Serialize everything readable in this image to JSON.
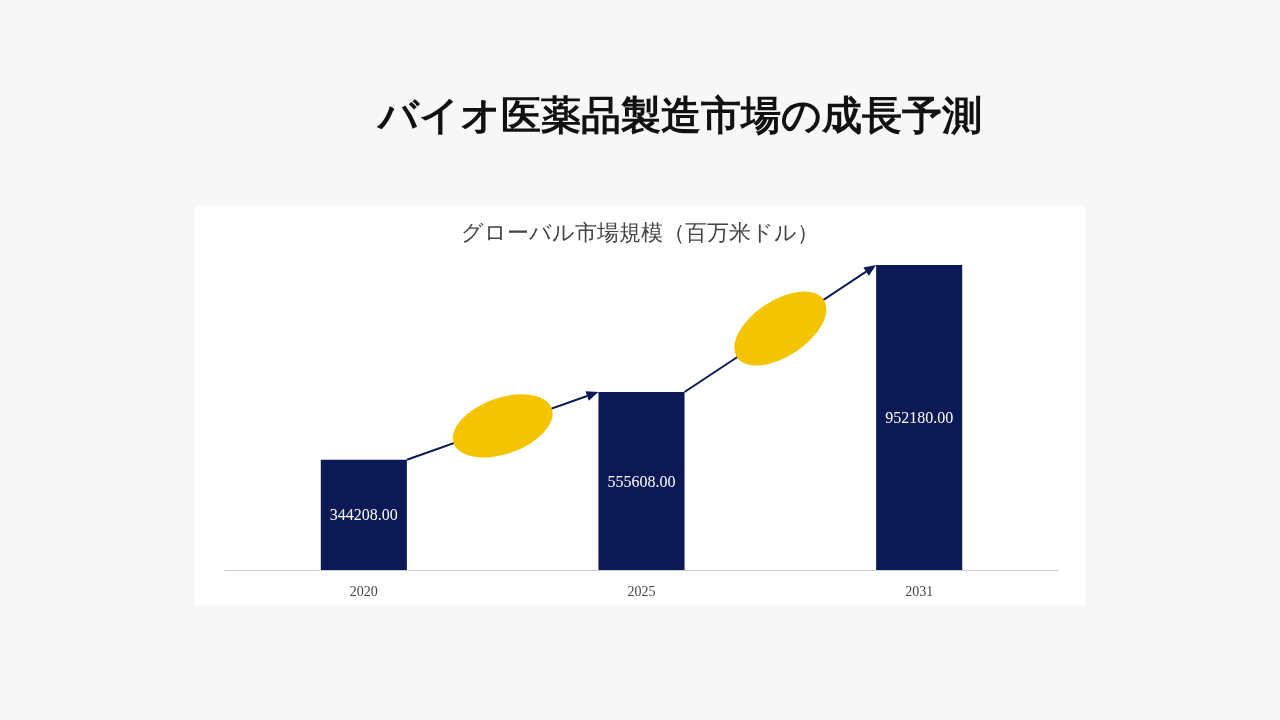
{
  "chart_data": {
    "type": "bar",
    "title": "バイオ医薬品製造市場の成長予測",
    "subtitle": "グローバル市場規模（百万米ドル）",
    "categories": [
      "2020",
      "2025",
      "2031"
    ],
    "values": [
      344208,
      555608,
      952180
    ],
    "value_labels": [
      "344208.00",
      "555608.00",
      "952180.00"
    ],
    "color": "#0b1a55"
  }
}
